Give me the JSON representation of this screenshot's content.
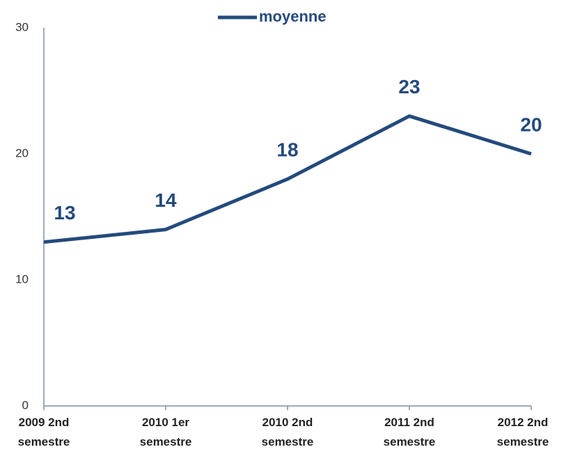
{
  "chart_data": {
    "type": "line",
    "categories": [
      "2009 2nd semestre",
      "2010 1er semestre",
      "2010 2nd semestre",
      "2011 2nd semestre",
      "2012 2nd semestre"
    ],
    "series": [
      {
        "name": "moyenne",
        "color": "#244a7c",
        "values": [
          13,
          14,
          18,
          23,
          20
        ]
      }
    ],
    "ylim": [
      0,
      30
    ],
    "yticks": [
      0,
      10,
      20,
      30
    ],
    "grid": false,
    "legend": "top"
  }
}
